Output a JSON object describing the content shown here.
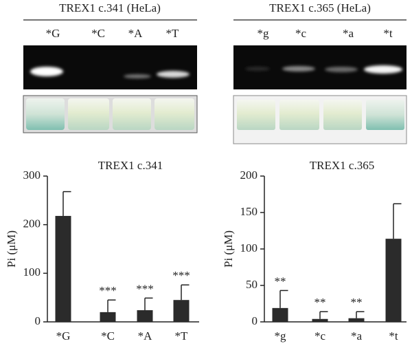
{
  "gel_panels": [
    {
      "title": "TREX1 c.341 (HeLa)",
      "lanes": [
        "*G",
        "*C",
        "*A",
        "*T"
      ]
    },
    {
      "title": "TREX1 c.365 (HeLa)",
      "lanes": [
        "*g",
        "*c",
        "*a",
        "*t"
      ]
    }
  ],
  "chart_data": [
    {
      "type": "bar",
      "title": "TREX1 c.341",
      "y_label": "Pi (μM)",
      "categories": [
        "*G",
        "*C",
        "*A",
        "*T"
      ],
      "values": [
        218,
        20,
        24,
        45
      ],
      "errors": [
        50,
        25,
        25,
        31
      ],
      "annotations": [
        null,
        "***",
        "***",
        "***"
      ],
      "color": "#2b2b2b",
      "ylim": [
        0,
        300
      ],
      "yticks": [
        0,
        100,
        200,
        300
      ]
    },
    {
      "type": "bar",
      "title": "TREX1 c.365",
      "y_label": "Pi (μM)",
      "categories": [
        "*g",
        "*c",
        "*a",
        "*t"
      ],
      "values": [
        19,
        4,
        5,
        114
      ],
      "errors": [
        24,
        10,
        9,
        48
      ],
      "annotations": [
        "**",
        "**",
        "**",
        null
      ],
      "color": "#2b2b2b",
      "ylim": [
        0,
        200
      ],
      "yticks": [
        0,
        50,
        100,
        150,
        200
      ]
    }
  ]
}
